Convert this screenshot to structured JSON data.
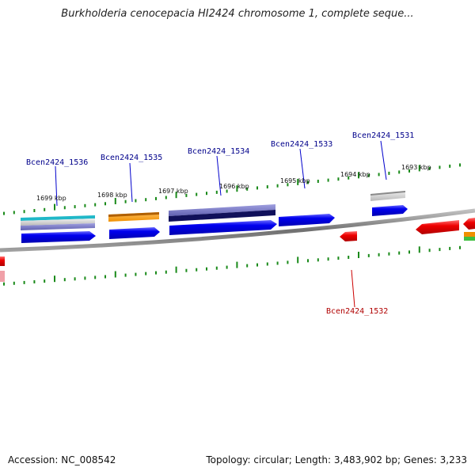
{
  "title": "Burkholderia cenocepacia HI2424 chromosome 1, complete seque...",
  "footer": {
    "accession": "Accession: NC_008542",
    "topology": "Topology: circular; Length: 3,483,902 bp; Genes: 3,233"
  },
  "colors": {
    "forward_gene": "#0000ee",
    "reverse_gene": "#ff0000",
    "label_forward": "#00008b",
    "label_reverse": "#b00000",
    "tick": "#1a8a1a",
    "backbone": "#808080"
  },
  "kbp_ticks": [
    {
      "label": "1699 kbp"
    },
    {
      "label": "1698 kbp"
    },
    {
      "label": "1697 kbp"
    },
    {
      "label": "1696 kbp"
    },
    {
      "label": "1695 kbp"
    },
    {
      "label": "1694 kbp"
    },
    {
      "label": "1693 kbp"
    }
  ],
  "gene_labels": [
    {
      "name": "Bcen2424_1536",
      "strand": "forward"
    },
    {
      "name": "Bcen2424_1535",
      "strand": "forward"
    },
    {
      "name": "Bcen2424_1534",
      "strand": "forward"
    },
    {
      "name": "Bcen2424_1533",
      "strand": "forward"
    },
    {
      "name": "Bcen2424_1531",
      "strand": "forward"
    },
    {
      "name": "Bcen2424_1532",
      "strand": "reverse"
    }
  ]
}
